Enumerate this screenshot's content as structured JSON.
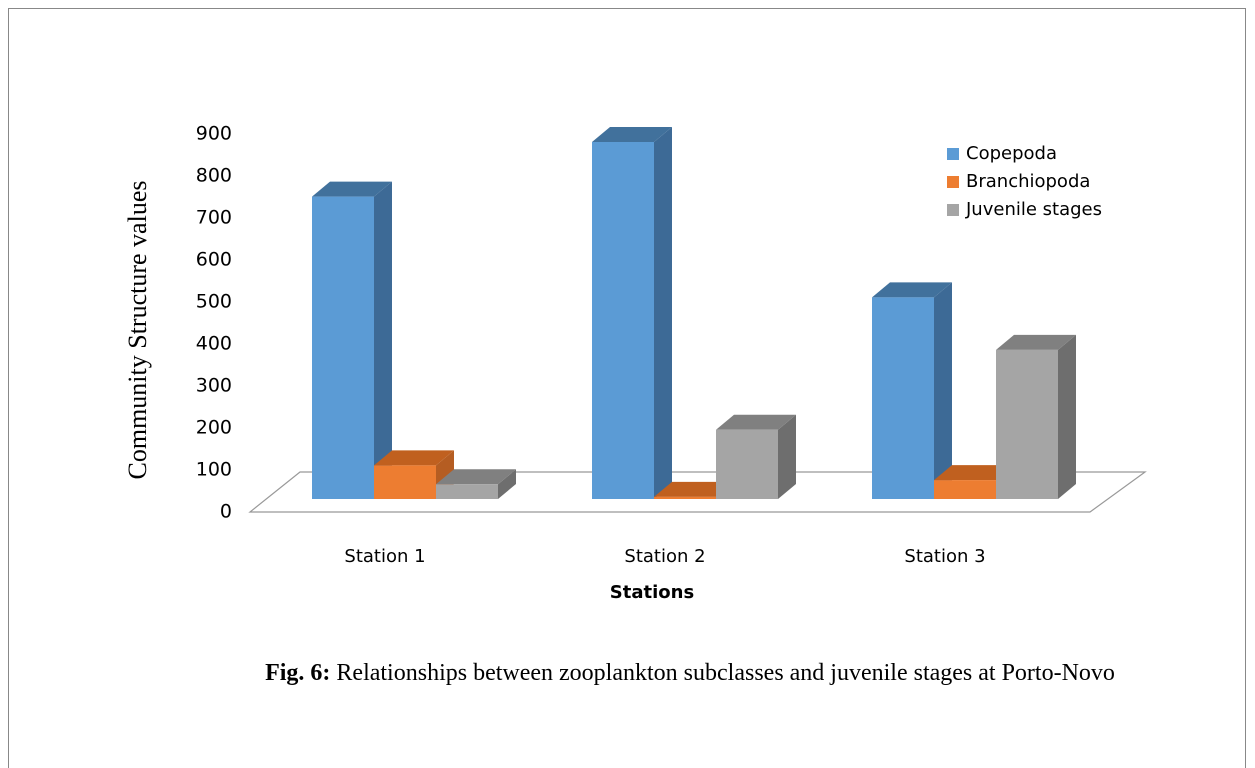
{
  "chart_data": {
    "type": "bar3d",
    "y_label": "Community Structure values",
    "x_label": "Stations",
    "categories": [
      "Station 1",
      "Station 2",
      "Station 3"
    ],
    "series": [
      {
        "name": "Copepoda",
        "color": "#5b9bd5",
        "side": "#3d6a96",
        "top": "#41719c",
        "values": [
          720,
          850,
          480
        ]
      },
      {
        "name": "Branchiopoda",
        "color": "#ed7d31",
        "side": "#b55d22",
        "top": "#c0601f",
        "values": [
          80,
          5,
          45
        ]
      },
      {
        "name": "Juvenile stages",
        "color": "#a5a5a5",
        "side": "#6e6e6e",
        "top": "#808080",
        "values": [
          35,
          165,
          355
        ]
      }
    ],
    "ylim": [
      0,
      900
    ],
    "yticks": [
      0,
      100,
      200,
      300,
      400,
      500,
      600,
      700,
      800,
      900
    ],
    "legend": "upper right"
  },
  "caption_label": "Fig. 6:",
  "caption": "Relationships between zooplankton subclasses and juvenile stages  at Porto-Novo"
}
